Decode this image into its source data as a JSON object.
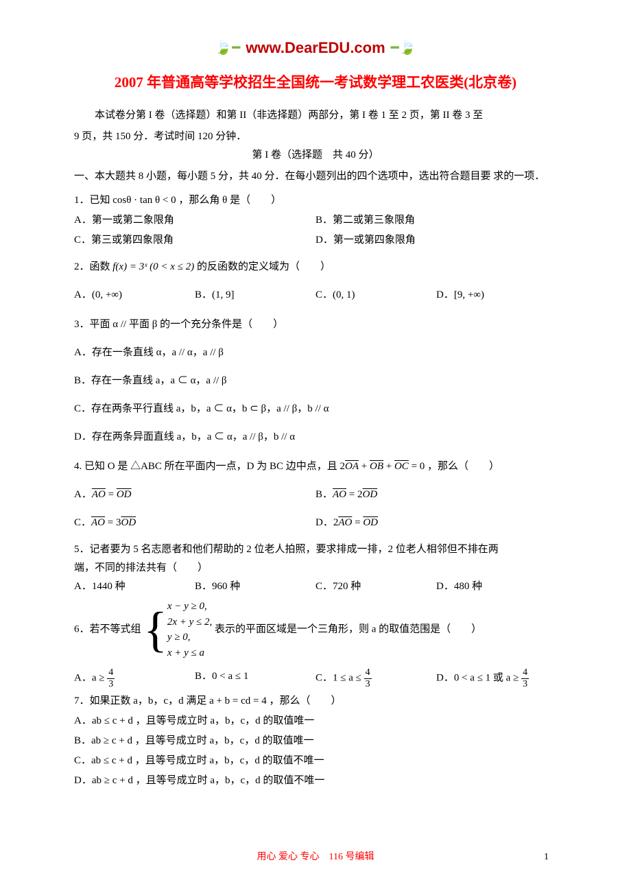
{
  "logo": {
    "url": "www.DearEDU.com",
    "color": "#c00000",
    "leaf_color": "#7cb342"
  },
  "title": "2007 年普通高等学校招生全国统一考试数学理工农医类(北京卷)",
  "title_color": "#ff0000",
  "intro_line1": "本试卷分第 I 卷（选择题）和第 II（非选择题）两部分，第 I 卷 1 至 2 页，第 II 卷 3 至",
  "intro_line2": "9 页，共 150 分．考试时间 120 分钟．",
  "section_header": "第 I 卷（选择题　共 40 分）",
  "instructions_line1": "一、本大题共 8 小题，每小题 5 分，共 40 分．在每小题列出的四个选项中，选出符合题目要",
  "instructions_line2": "求的一项．",
  "q1": {
    "text": "1．已知 cosθ · tan θ < 0 ，那么角 θ 是（　　）",
    "optA": "A．第一或第二象限角",
    "optB": "B．第二或第三象限角",
    "optC": "C．第三或第四象限角",
    "optD": "D．第一或第四象限角"
  },
  "q2": {
    "text_pre": "2．函数 ",
    "formula": "f(x) = 3ˣ (0 < x ≤ 2)",
    "text_post": " 的反函数的定义域为（　　）",
    "optA": "A．(0, +∞)",
    "optB": "B．(1, 9]",
    "optC": "C．(0, 1)",
    "optD": "D．[9, +∞)"
  },
  "q3": {
    "text": "3．平面 α // 平面 β 的一个充分条件是（　　）",
    "optA": "A．存在一条直线 α，a // α，a // β",
    "optB": "B．存在一条直线 a，a ⊂ α，a // β",
    "optC": "C．存在两条平行直线 a，b，a ⊂ α，b ⊂ β，a // β，b // α",
    "optD": "D．存在两条异面直线 a，b，a ⊂ α，a // β，b // α"
  },
  "q4": {
    "text_pre": "4. 已知 O 是 △ABC 所在平面内一点，D 为 BC 边中点，且 2",
    "vec_oa": "OA",
    "plus1": " + ",
    "vec_ob": "OB",
    "plus2": " + ",
    "vec_oc": "OC",
    "text_post": " = 0 ，那么（　　）",
    "optA_pre": "A．",
    "optA_v1": "AO",
    "optA_eq": " = ",
    "optA_v2": "OD",
    "optB_pre": "B．",
    "optB_v1": "AO",
    "optB_eq": " = 2",
    "optB_v2": "OD",
    "optC_pre": "C．",
    "optC_v1": "AO",
    "optC_eq": " = 3",
    "optC_v2": "OD",
    "optD_pre": "D．2",
    "optD_v1": "AO",
    "optD_eq": " = ",
    "optD_v2": "OD"
  },
  "q5": {
    "line1": "5．记者要为 5 名志愿者和他们帮助的 2 位老人拍照，要求排成一排，2 位老人相邻但不排在两",
    "line2": "端，不同的排法共有（　　）",
    "optA": "A．1440 种",
    "optB": "B．960 种",
    "optC": "C．720 种",
    "optD": "D．480 种"
  },
  "q6": {
    "text_pre": "6．若不等式组 ",
    "ineq1": "x − y ≥ 0,",
    "ineq2": "2x + y ≤ 2,",
    "ineq3": "y ≥ 0,",
    "ineq4": "x + y ≤ a",
    "text_post": " 表示的平面区域是一个三角形，则 a 的取值范围是（　　）",
    "optA_pre": "A．a ≥ ",
    "optA_frac_num": "4",
    "optA_frac_den": "3",
    "optB": "B．0 < a ≤ 1",
    "optC_pre": "C．1 ≤ a ≤ ",
    "optC_frac_num": "4",
    "optC_frac_den": "3",
    "optD_pre": "D．0 < a ≤ 1 或 a ≥ ",
    "optD_frac_num": "4",
    "optD_frac_den": "3"
  },
  "q7": {
    "text": "7．如果正数 a，b，c，d 满足 a + b = cd = 4 ，那么（　　）",
    "optA": "A．ab ≤ c + d ，且等号成立时 a，b，c，d 的取值唯一",
    "optB": "B．ab ≥ c + d ，且等号成立时 a，b，c，d 的取值唯一",
    "optC": "C．ab ≤ c + d ，且等号成立时 a，b，c，d 的取值不唯一",
    "optD": "D．ab ≥ c + d ，且等号成立时 a，b，c，d 的取值不唯一"
  },
  "footer": "用心 爱心 专心　116 号编辑",
  "footer_color": "#ff0000",
  "page_number": "1"
}
